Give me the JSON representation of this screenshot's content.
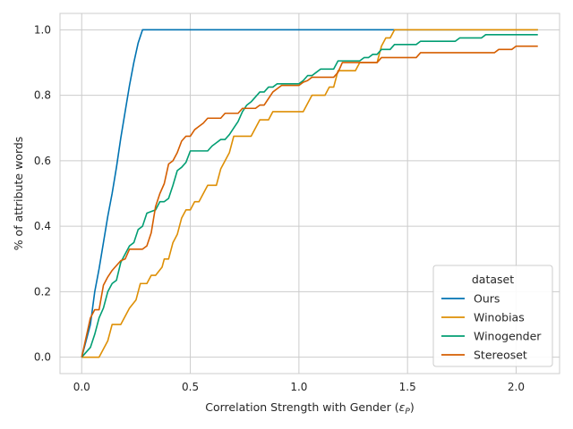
{
  "chart_data": {
    "type": "line",
    "xlabel": "Correlation Strength with Gender (",
    "xlabel_symbol": "ε",
    "xlabel_subscript": "P",
    "xlabel_suffix": ")",
    "ylabel": "% of attribute words",
    "xlim": [
      -0.1,
      2.2
    ],
    "ylim": [
      -0.05,
      1.05
    ],
    "xticks": [
      0.0,
      0.5,
      1.0,
      1.5,
      2.0
    ],
    "xtick_labels": [
      "0.0",
      "0.5",
      "1.0",
      "1.5",
      "2.0"
    ],
    "yticks": [
      0.0,
      0.2,
      0.4,
      0.6,
      0.8,
      1.0
    ],
    "ytick_labels": [
      "0.0",
      "0.2",
      "0.4",
      "0.6",
      "0.8",
      "1.0"
    ],
    "grid": true,
    "legend_title": "dataset",
    "legend_position": "lower-right",
    "series": [
      {
        "name": "Ours",
        "color": "#0173b2",
        "points": [
          [
            0.0,
            0.0
          ],
          [
            0.02,
            0.05
          ],
          [
            0.04,
            0.1
          ],
          [
            0.06,
            0.2
          ],
          [
            0.08,
            0.27
          ],
          [
            0.1,
            0.35
          ],
          [
            0.12,
            0.43
          ],
          [
            0.14,
            0.5
          ],
          [
            0.16,
            0.58
          ],
          [
            0.18,
            0.67
          ],
          [
            0.2,
            0.75
          ],
          [
            0.22,
            0.83
          ],
          [
            0.24,
            0.9
          ],
          [
            0.26,
            0.96
          ],
          [
            0.28,
            1.0
          ],
          [
            1.45,
            1.0
          ],
          [
            2.1,
            1.0
          ]
        ]
      },
      {
        "name": "Winobias",
        "color": "#de8f05",
        "points": [
          [
            0.0,
            0.0
          ],
          [
            0.05,
            0.0
          ],
          [
            0.08,
            0.0
          ],
          [
            0.1,
            0.025
          ],
          [
            0.12,
            0.05
          ],
          [
            0.14,
            0.1
          ],
          [
            0.18,
            0.1
          ],
          [
            0.2,
            0.125
          ],
          [
            0.22,
            0.15
          ],
          [
            0.25,
            0.175
          ],
          [
            0.27,
            0.225
          ],
          [
            0.3,
            0.225
          ],
          [
            0.32,
            0.25
          ],
          [
            0.34,
            0.25
          ],
          [
            0.37,
            0.275
          ],
          [
            0.38,
            0.3
          ],
          [
            0.4,
            0.3
          ],
          [
            0.42,
            0.35
          ],
          [
            0.44,
            0.375
          ],
          [
            0.46,
            0.425
          ],
          [
            0.48,
            0.45
          ],
          [
            0.5,
            0.45
          ],
          [
            0.52,
            0.475
          ],
          [
            0.54,
            0.475
          ],
          [
            0.56,
            0.5
          ],
          [
            0.58,
            0.525
          ],
          [
            0.62,
            0.525
          ],
          [
            0.64,
            0.575
          ],
          [
            0.66,
            0.6
          ],
          [
            0.68,
            0.625
          ],
          [
            0.7,
            0.675
          ],
          [
            0.78,
            0.675
          ],
          [
            0.8,
            0.7
          ],
          [
            0.82,
            0.725
          ],
          [
            0.86,
            0.725
          ],
          [
            0.88,
            0.75
          ],
          [
            1.02,
            0.75
          ],
          [
            1.04,
            0.775
          ],
          [
            1.06,
            0.8
          ],
          [
            1.12,
            0.8
          ],
          [
            1.14,
            0.825
          ],
          [
            1.16,
            0.825
          ],
          [
            1.18,
            0.875
          ],
          [
            1.26,
            0.875
          ],
          [
            1.28,
            0.9
          ],
          [
            1.36,
            0.9
          ],
          [
            1.38,
            0.95
          ],
          [
            1.4,
            0.975
          ],
          [
            1.42,
            0.975
          ],
          [
            1.44,
            1.0
          ],
          [
            2.1,
            1.0
          ]
        ]
      },
      {
        "name": "Winogender",
        "color": "#029e73",
        "points": [
          [
            0.0,
            0.0
          ],
          [
            0.02,
            0.015
          ],
          [
            0.04,
            0.03
          ],
          [
            0.06,
            0.07
          ],
          [
            0.08,
            0.12
          ],
          [
            0.1,
            0.15
          ],
          [
            0.12,
            0.2
          ],
          [
            0.14,
            0.225
          ],
          [
            0.16,
            0.235
          ],
          [
            0.18,
            0.29
          ],
          [
            0.2,
            0.315
          ],
          [
            0.22,
            0.34
          ],
          [
            0.24,
            0.35
          ],
          [
            0.26,
            0.39
          ],
          [
            0.28,
            0.4
          ],
          [
            0.3,
            0.44
          ],
          [
            0.32,
            0.445
          ],
          [
            0.34,
            0.45
          ],
          [
            0.36,
            0.475
          ],
          [
            0.38,
            0.475
          ],
          [
            0.4,
            0.485
          ],
          [
            0.42,
            0.525
          ],
          [
            0.44,
            0.57
          ],
          [
            0.46,
            0.58
          ],
          [
            0.48,
            0.595
          ],
          [
            0.5,
            0.63
          ],
          [
            0.58,
            0.63
          ],
          [
            0.6,
            0.645
          ],
          [
            0.62,
            0.655
          ],
          [
            0.64,
            0.665
          ],
          [
            0.66,
            0.665
          ],
          [
            0.68,
            0.68
          ],
          [
            0.7,
            0.7
          ],
          [
            0.72,
            0.72
          ],
          [
            0.74,
            0.75
          ],
          [
            0.76,
            0.77
          ],
          [
            0.78,
            0.78
          ],
          [
            0.8,
            0.795
          ],
          [
            0.82,
            0.81
          ],
          [
            0.84,
            0.81
          ],
          [
            0.86,
            0.825
          ],
          [
            0.88,
            0.825
          ],
          [
            0.9,
            0.835
          ],
          [
            1.0,
            0.835
          ],
          [
            1.02,
            0.845
          ],
          [
            1.04,
            0.86
          ],
          [
            1.06,
            0.86
          ],
          [
            1.08,
            0.87
          ],
          [
            1.1,
            0.88
          ],
          [
            1.16,
            0.88
          ],
          [
            1.18,
            0.905
          ],
          [
            1.28,
            0.905
          ],
          [
            1.3,
            0.915
          ],
          [
            1.32,
            0.915
          ],
          [
            1.34,
            0.925
          ],
          [
            1.36,
            0.925
          ],
          [
            1.38,
            0.94
          ],
          [
            1.42,
            0.94
          ],
          [
            1.44,
            0.955
          ],
          [
            1.54,
            0.955
          ],
          [
            1.56,
            0.965
          ],
          [
            1.72,
            0.965
          ],
          [
            1.74,
            0.975
          ],
          [
            1.84,
            0.975
          ],
          [
            1.86,
            0.985
          ],
          [
            2.1,
            0.985
          ]
        ]
      },
      {
        "name": "Stereoset",
        "color": "#d55e00",
        "points": [
          [
            0.0,
            0.0
          ],
          [
            0.02,
            0.06
          ],
          [
            0.04,
            0.12
          ],
          [
            0.06,
            0.145
          ],
          [
            0.08,
            0.145
          ],
          [
            0.1,
            0.22
          ],
          [
            0.12,
            0.245
          ],
          [
            0.14,
            0.265
          ],
          [
            0.16,
            0.28
          ],
          [
            0.18,
            0.295
          ],
          [
            0.2,
            0.3
          ],
          [
            0.22,
            0.33
          ],
          [
            0.24,
            0.33
          ],
          [
            0.28,
            0.33
          ],
          [
            0.3,
            0.34
          ],
          [
            0.32,
            0.38
          ],
          [
            0.34,
            0.46
          ],
          [
            0.36,
            0.5
          ],
          [
            0.38,
            0.53
          ],
          [
            0.4,
            0.59
          ],
          [
            0.42,
            0.6
          ],
          [
            0.44,
            0.625
          ],
          [
            0.46,
            0.66
          ],
          [
            0.48,
            0.675
          ],
          [
            0.5,
            0.675
          ],
          [
            0.52,
            0.695
          ],
          [
            0.54,
            0.705
          ],
          [
            0.56,
            0.715
          ],
          [
            0.58,
            0.73
          ],
          [
            0.64,
            0.73
          ],
          [
            0.66,
            0.745
          ],
          [
            0.72,
            0.745
          ],
          [
            0.74,
            0.76
          ],
          [
            0.8,
            0.76
          ],
          [
            0.82,
            0.77
          ],
          [
            0.84,
            0.77
          ],
          [
            0.86,
            0.79
          ],
          [
            0.88,
            0.81
          ],
          [
            0.9,
            0.82
          ],
          [
            0.92,
            0.83
          ],
          [
            1.0,
            0.83
          ],
          [
            1.02,
            0.84
          ],
          [
            1.04,
            0.845
          ],
          [
            1.06,
            0.855
          ],
          [
            1.16,
            0.855
          ],
          [
            1.18,
            0.87
          ],
          [
            1.2,
            0.9
          ],
          [
            1.36,
            0.9
          ],
          [
            1.38,
            0.915
          ],
          [
            1.54,
            0.915
          ],
          [
            1.56,
            0.93
          ],
          [
            1.9,
            0.93
          ],
          [
            1.92,
            0.94
          ],
          [
            1.98,
            0.94
          ],
          [
            2.0,
            0.95
          ],
          [
            2.1,
            0.95
          ]
        ]
      }
    ]
  }
}
